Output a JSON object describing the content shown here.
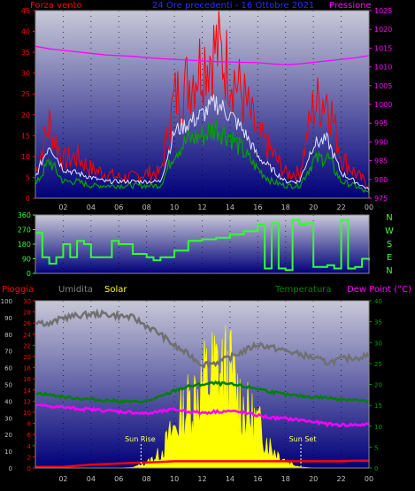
{
  "header": {
    "left_label": "Forza vento",
    "center_label": "24 Ore precedenti - 16 Ottobre 2021",
    "right_label": "Pressione"
  },
  "compass": [
    "N",
    "W",
    "S",
    "E",
    "N"
  ],
  "lower_header": {
    "rain": "Pioggia",
    "humidity": "Umidita",
    "solar": "Solar",
    "temperature": "Temperatura",
    "dewpoint": "Dew Point (°C)"
  },
  "colors": {
    "wind_gust": "#ff0000",
    "wind_avg": "#00a000",
    "wind_mean": "#e0e0ff",
    "pressure": "#ff00ff",
    "direction": "#33ff33",
    "humidity": "#707070",
    "solar": "#ffff00",
    "temperature": "#008000",
    "dewpoint": "#ff00ff",
    "rain": "#ff0000",
    "sky_top": "#c8c8d8",
    "sky_bottom": "#00007a"
  },
  "chart_data": [
    {
      "id": "wind",
      "type": "line",
      "xlabel": "",
      "x_ticks": [
        "02",
        "04",
        "06",
        "08",
        "10",
        "12",
        "14",
        "16",
        "18",
        "20",
        "22",
        "00"
      ],
      "ylim_left": [
        0,
        45
      ],
      "yticks_left": [
        0,
        5,
        10,
        15,
        20,
        25,
        30,
        35,
        40,
        45
      ],
      "ylim_right": [
        975,
        1025
      ],
      "yticks_right": [
        975,
        980,
        985,
        990,
        995,
        1000,
        1005,
        1010,
        1015,
        1020,
        1025
      ],
      "hours": [
        0,
        1,
        2,
        3,
        4,
        5,
        6,
        7,
        8,
        9,
        10,
        11,
        12,
        13,
        14,
        15,
        16,
        17,
        18,
        19,
        20,
        21,
        22,
        23,
        24
      ],
      "gust": [
        6,
        18,
        9,
        10,
        7,
        6,
        5,
        5,
        6,
        6,
        24,
        28,
        33,
        36,
        31,
        24,
        15,
        11,
        6,
        6,
        22,
        25,
        10,
        6,
        3
      ],
      "average": [
        3,
        9,
        4,
        4,
        3,
        3,
        3,
        3,
        3,
        3,
        11,
        14,
        15,
        17,
        15,
        11,
        7,
        4,
        3,
        3,
        9,
        10,
        4,
        3,
        1
      ],
      "mean": [
        5,
        13,
        7,
        6,
        5,
        4,
        4,
        4,
        4,
        4,
        16,
        18,
        20,
        23,
        20,
        16,
        10,
        7,
        4,
        4,
        13,
        14,
        6,
        4,
        2
      ],
      "pressure": [
        1015.5,
        1014.8,
        1014.4,
        1014,
        1013.6,
        1013.2,
        1013,
        1012.8,
        1012.5,
        1012.2,
        1012,
        1011.8,
        1011.6,
        1011.4,
        1011.3,
        1011.2,
        1011.1,
        1010.8,
        1010.6,
        1010.8,
        1011.2,
        1011.6,
        1012,
        1012.4,
        1013
      ]
    },
    {
      "id": "wind_direction",
      "type": "line",
      "xlabel": "",
      "ylim": [
        0,
        360
      ],
      "yticks": [
        0,
        90,
        180,
        270,
        360
      ],
      "hours": [
        0,
        0.5,
        1,
        1.5,
        2,
        2.5,
        3,
        3.5,
        4,
        4.5,
        5,
        5.5,
        6,
        6.5,
        7,
        7.5,
        8,
        8.5,
        9,
        10,
        11,
        12,
        13,
        14,
        15,
        16,
        16.5,
        17,
        17.5,
        18,
        18.5,
        19,
        19.5,
        20,
        20.5,
        21,
        21.5,
        22,
        22.5,
        23,
        23.5,
        24
      ],
      "direction": [
        250,
        100,
        60,
        100,
        180,
        100,
        200,
        180,
        100,
        100,
        100,
        200,
        180,
        180,
        120,
        120,
        100,
        80,
        100,
        140,
        200,
        210,
        220,
        240,
        260,
        300,
        30,
        310,
        30,
        20,
        330,
        300,
        310,
        40,
        40,
        50,
        30,
        330,
        30,
        40,
        90,
        80
      ]
    },
    {
      "id": "solar_temp",
      "type": "line",
      "xlabel": "",
      "x_ticks": [
        "02",
        "04",
        "06",
        "08",
        "10",
        "12",
        "14",
        "16",
        "18",
        "20",
        "22",
        "00"
      ],
      "annotations": [
        "Sun Rise",
        "Sun Set"
      ],
      "ylim_humidity": [
        0,
        100
      ],
      "yticks_humidity": [
        0,
        10,
        20,
        30,
        40,
        50,
        60,
        70,
        80,
        90,
        100
      ],
      "ylim_rain": [
        0,
        30
      ],
      "yticks_rain": [
        0,
        2,
        4,
        6,
        8,
        10,
        12,
        14,
        16,
        18,
        20,
        22,
        24,
        26,
        28,
        30
      ],
      "ylim_temp": [
        0,
        40
      ],
      "yticks_temp": [
        0,
        5,
        10,
        15,
        20,
        25,
        30,
        35,
        40
      ],
      "hours": [
        0,
        1,
        2,
        3,
        4,
        5,
        6,
        7,
        8,
        9,
        10,
        11,
        12,
        13,
        14,
        15,
        16,
        17,
        18,
        19,
        20,
        21,
        22,
        23,
        24
      ],
      "humidity": [
        88,
        86,
        90,
        91,
        92,
        92,
        91,
        90,
        85,
        80,
        73,
        68,
        62,
        63,
        66,
        70,
        74,
        72,
        70,
        68,
        66,
        63,
        65,
        66,
        67
      ],
      "temperature": [
        18,
        17.5,
        17,
        16.7,
        16.4,
        16.2,
        16,
        15.8,
        16,
        17,
        18.5,
        19.5,
        20,
        20.3,
        20,
        19.5,
        19,
        18.2,
        17.5,
        17.2,
        17,
        16.8,
        16.5,
        16.3,
        15.8
      ],
      "dewpoint": [
        15,
        14.8,
        14.5,
        14.2,
        14,
        13.8,
        13.5,
        13.3,
        13,
        13.5,
        14,
        13.5,
        13.2,
        13.5,
        13.6,
        13.2,
        12.6,
        12,
        11.8,
        11.5,
        11,
        10.5,
        10.3,
        10.3,
        10.4
      ],
      "solar": [
        0,
        0,
        0,
        0,
        0,
        0,
        0,
        0.1,
        1,
        3,
        8,
        13,
        17,
        20,
        19,
        12,
        9,
        4,
        1.5,
        0.2,
        0,
        0,
        0,
        0,
        0
      ],
      "rain": [
        0.2,
        0.2,
        0.2,
        0.4,
        0.6,
        0.7,
        0.8,
        0.9,
        1,
        1.1,
        1.2,
        1.2,
        1.2,
        1.2,
        1.2,
        1.2,
        1.2,
        1.2,
        1.2,
        1.2,
        1.2,
        1.2,
        1.2,
        1.3,
        1.3
      ]
    }
  ]
}
